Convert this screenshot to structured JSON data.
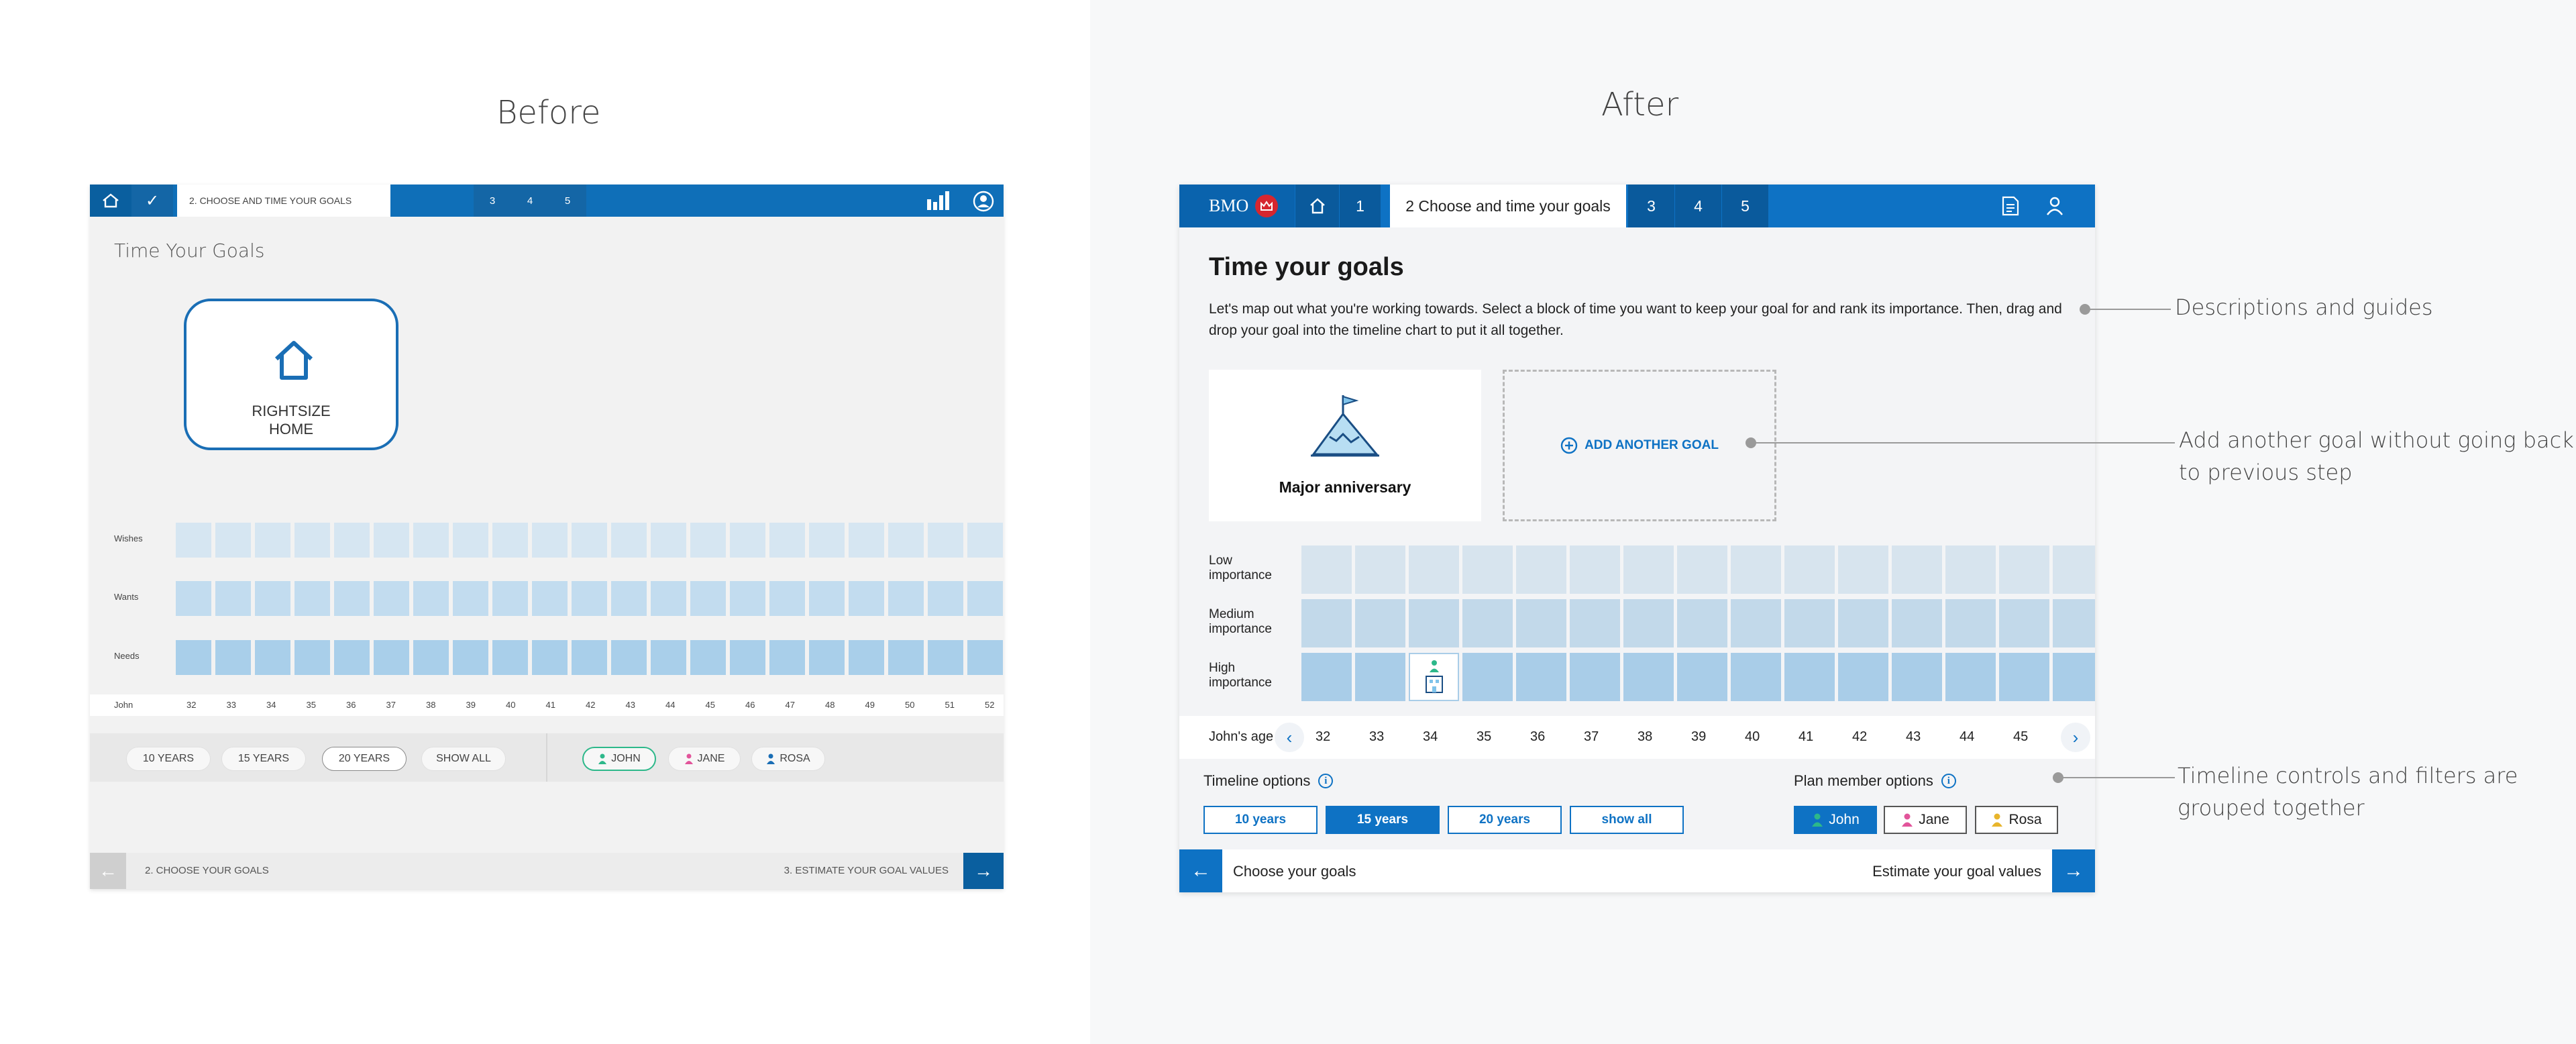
{
  "labels": {
    "before": "Before",
    "after": "After"
  },
  "before": {
    "title": "Time Your Goals",
    "breadcrumb_step": "2. CHOOSE AND TIME YOUR GOALS",
    "steps": [
      "3",
      "4",
      "5"
    ],
    "goal_label_line1": "RIGHTSIZE",
    "goal_label_line2": "HOME",
    "rows": [
      "Wishes",
      "Wants",
      "Needs"
    ],
    "person": "John",
    "ages": [
      "32",
      "33",
      "34",
      "35",
      "36",
      "37",
      "38",
      "39",
      "40",
      "41",
      "42",
      "43",
      "44",
      "45",
      "46",
      "47",
      "48",
      "49",
      "50",
      "51",
      "52"
    ],
    "timeline_options": [
      "10 YEARS",
      "15 YEARS",
      "20 YEARS",
      "SHOW ALL"
    ],
    "members": [
      "JOHN",
      "JANE",
      "ROSA"
    ],
    "footer_prev": "2. CHOOSE YOUR GOALS",
    "footer_next": "3. ESTIMATE YOUR GOAL VALUES"
  },
  "after": {
    "brand": "BMO",
    "tabs": {
      "step1": "1",
      "active": "2 Choose and time your goals",
      "step3": "3",
      "step4": "4",
      "step5": "5"
    },
    "title": "Time your goals",
    "description": "Let's map out what you're working towards. Select a block of time you want to keep your goal for and rank its importance. Then, drag and drop your goal into the timeline chart to put it all together.",
    "goal_label": "Major anniversary",
    "add_goal": "ADD ANOTHER GOAL",
    "rows": {
      "low": [
        "Low",
        "importance"
      ],
      "medium": [
        "Medium",
        "importance"
      ],
      "high": [
        "High",
        "importance"
      ]
    },
    "age_label": "John's age",
    "ages": [
      "32",
      "33",
      "34",
      "35",
      "36",
      "37",
      "38",
      "39",
      "40",
      "41",
      "42",
      "43",
      "44",
      "45"
    ],
    "timeline_label": "Timeline options",
    "timeline_options": [
      "10 years",
      "15 years",
      "20 years",
      "show all"
    ],
    "member_label": "Plan member options",
    "members": [
      "John",
      "Jane",
      "Rosa"
    ],
    "footer_prev": "Choose your goals",
    "footer_next": "Estimate your goal values"
  },
  "annotations": {
    "a1": "Descriptions and guides",
    "a2_line1": "Add another goal without going back",
    "a2_line2": "to previous step",
    "a3_line1": "Timeline controls and filters are",
    "a3_line2": "grouped together"
  },
  "colors": {
    "bmo_blue": "#0e72c4",
    "bmo_red": "#d6262f",
    "john": "#2db88a",
    "jane": "#e2559b",
    "rosa": "#e8b52c"
  }
}
